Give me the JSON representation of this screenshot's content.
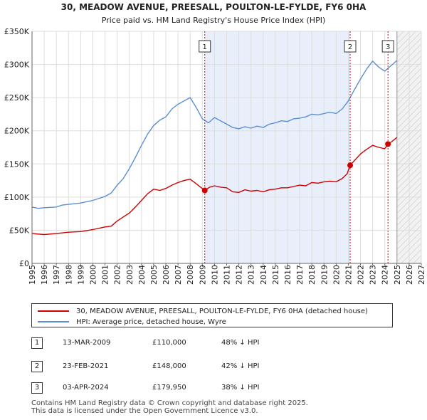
{
  "chart_data": {
    "type": "line",
    "title": "30, MEADOW AVENUE, PREESALL, POULTON-LE-FYLDE, FY6 0HA",
    "subtitle": "Price paid vs. HM Land Registry's House Price Index (HPI)",
    "xlim": [
      1995,
      2027
    ],
    "ylim": [
      0,
      350000
    ],
    "x_ticks": [
      "1995",
      "1996",
      "1997",
      "1998",
      "1999",
      "2000",
      "2001",
      "2002",
      "2003",
      "2004",
      "2005",
      "2006",
      "2007",
      "2008",
      "2009",
      "2010",
      "2011",
      "2012",
      "2013",
      "2014",
      "2015",
      "2016",
      "2017",
      "2018",
      "2019",
      "2020",
      "2021",
      "2022",
      "2023",
      "2024",
      "2025",
      "2026",
      "2027"
    ],
    "y_ticks": [
      {
        "value": 0,
        "label": "£0"
      },
      {
        "value": 50000,
        "label": "£50K"
      },
      {
        "value": 100000,
        "label": "£100K"
      },
      {
        "value": 150000,
        "label": "£150K"
      },
      {
        "value": 200000,
        "label": "£200K"
      },
      {
        "value": 250000,
        "label": "£250K"
      },
      {
        "value": 300000,
        "label": "£300K"
      },
      {
        "value": 350000,
        "label": "£350K"
      }
    ],
    "highlight_band": [
      2009.2,
      2021.15
    ],
    "future_from": 2025.0,
    "series": [
      {
        "name": "30, MEADOW AVENUE, PREESALL, POULTON-LE-FYLDE, FY6 0HA (detached house)",
        "color": "#cc0000",
        "points": [
          [
            1995.0,
            45000
          ],
          [
            1996.0,
            43500
          ],
          [
            1997.0,
            45000
          ],
          [
            1998.0,
            47000
          ],
          [
            1999.0,
            48000
          ],
          [
            2000.0,
            51000
          ],
          [
            2001.0,
            55000
          ],
          [
            2001.5,
            56000
          ],
          [
            2002.0,
            64000
          ],
          [
            2002.5,
            70000
          ],
          [
            2003.0,
            76000
          ],
          [
            2003.5,
            85000
          ],
          [
            2004.0,
            95000
          ],
          [
            2004.5,
            105000
          ],
          [
            2005.0,
            112000
          ],
          [
            2005.5,
            110000
          ],
          [
            2006.0,
            113000
          ],
          [
            2006.5,
            118000
          ],
          [
            2007.0,
            122000
          ],
          [
            2007.5,
            125000
          ],
          [
            2008.0,
            127000
          ],
          [
            2008.5,
            120000
          ],
          [
            2009.2,
            110000
          ],
          [
            2009.6,
            115000
          ],
          [
            2010.0,
            117000
          ],
          [
            2010.5,
            115000
          ],
          [
            2011.0,
            114000
          ],
          [
            2011.5,
            108000
          ],
          [
            2012.0,
            107000
          ],
          [
            2012.5,
            111000
          ],
          [
            2013.0,
            109000
          ],
          [
            2013.5,
            110000
          ],
          [
            2014.0,
            108000
          ],
          [
            2014.5,
            111000
          ],
          [
            2015.0,
            112000
          ],
          [
            2015.5,
            114000
          ],
          [
            2016.0,
            114000
          ],
          [
            2016.5,
            116000
          ],
          [
            2017.0,
            118000
          ],
          [
            2017.5,
            117000
          ],
          [
            2018.0,
            122000
          ],
          [
            2018.5,
            121000
          ],
          [
            2019.0,
            123000
          ],
          [
            2019.5,
            124000
          ],
          [
            2020.0,
            123000
          ],
          [
            2020.5,
            128000
          ],
          [
            2020.9,
            135000
          ],
          [
            2021.15,
            148000
          ],
          [
            2021.5,
            155000
          ],
          [
            2022.0,
            165000
          ],
          [
            2022.5,
            172000
          ],
          [
            2023.0,
            178000
          ],
          [
            2023.5,
            175000
          ],
          [
            2024.0,
            173000
          ],
          [
            2024.26,
            179950
          ],
          [
            2024.6,
            184000
          ],
          [
            2025.0,
            190000
          ]
        ]
      },
      {
        "name": "HPI: Average price, detached house, Wyre",
        "color": "#5b8fd1",
        "points": [
          [
            1995.0,
            85000
          ],
          [
            1995.5,
            83000
          ],
          [
            1996.0,
            84000
          ],
          [
            1997.0,
            85000
          ],
          [
            1997.5,
            88000
          ],
          [
            1998.0,
            89000
          ],
          [
            1999.0,
            91000
          ],
          [
            2000.0,
            95000
          ],
          [
            2001.0,
            101000
          ],
          [
            2001.5,
            106000
          ],
          [
            2002.0,
            118000
          ],
          [
            2002.5,
            128000
          ],
          [
            2003.0,
            143000
          ],
          [
            2003.5,
            160000
          ],
          [
            2004.0,
            178000
          ],
          [
            2004.5,
            195000
          ],
          [
            2005.0,
            208000
          ],
          [
            2005.5,
            216000
          ],
          [
            2006.0,
            221000
          ],
          [
            2006.5,
            233000
          ],
          [
            2007.0,
            240000
          ],
          [
            2007.5,
            245000
          ],
          [
            2008.0,
            250000
          ],
          [
            2008.5,
            235000
          ],
          [
            2009.0,
            218000
          ],
          [
            2009.5,
            212000
          ],
          [
            2010.0,
            220000
          ],
          [
            2010.5,
            215000
          ],
          [
            2011.0,
            210000
          ],
          [
            2011.5,
            205000
          ],
          [
            2012.0,
            203000
          ],
          [
            2012.5,
            206000
          ],
          [
            2013.0,
            204000
          ],
          [
            2013.5,
            207000
          ],
          [
            2014.0,
            205000
          ],
          [
            2014.5,
            210000
          ],
          [
            2015.0,
            212000
          ],
          [
            2015.5,
            215000
          ],
          [
            2016.0,
            214000
          ],
          [
            2016.5,
            218000
          ],
          [
            2017.0,
            219000
          ],
          [
            2017.5,
            221000
          ],
          [
            2018.0,
            225000
          ],
          [
            2018.5,
            224000
          ],
          [
            2019.0,
            226000
          ],
          [
            2019.5,
            228000
          ],
          [
            2020.0,
            226000
          ],
          [
            2020.5,
            233000
          ],
          [
            2021.0,
            245000
          ],
          [
            2021.5,
            262000
          ],
          [
            2022.0,
            278000
          ],
          [
            2022.5,
            293000
          ],
          [
            2023.0,
            305000
          ],
          [
            2023.5,
            296000
          ],
          [
            2024.0,
            290000
          ],
          [
            2024.5,
            298000
          ],
          [
            2025.0,
            306000
          ]
        ]
      }
    ],
    "sales": [
      {
        "label": "1",
        "x": 2009.2,
        "price": 110000
      },
      {
        "label": "2",
        "x": 2021.15,
        "price": 148000
      },
      {
        "label": "3",
        "x": 2024.26,
        "price": 179950
      }
    ]
  },
  "legend": {
    "property_label": "30, MEADOW AVENUE, PREESALL, POULTON-LE-FYLDE, FY6 0HA (detached house)",
    "property_color": "#cc0000",
    "hpi_label": "HPI: Average price, detached house, Wyre",
    "hpi_color": "#5b8fd1"
  },
  "transactions": [
    {
      "num": "1",
      "date": "13-MAR-2009",
      "price": "£110,000",
      "hpi": "48% ↓ HPI"
    },
    {
      "num": "2",
      "date": "23-FEB-2021",
      "price": "£148,000",
      "hpi": "42% ↓ HPI"
    },
    {
      "num": "3",
      "date": "03-APR-2024",
      "price": "£179,950",
      "hpi": "38% ↓ HPI"
    }
  ],
  "footer": {
    "line1": "Contains HM Land Registry data © Crown copyright and database right 2025.",
    "line2": "This data is licensed under the Open Government Licence v3.0."
  }
}
